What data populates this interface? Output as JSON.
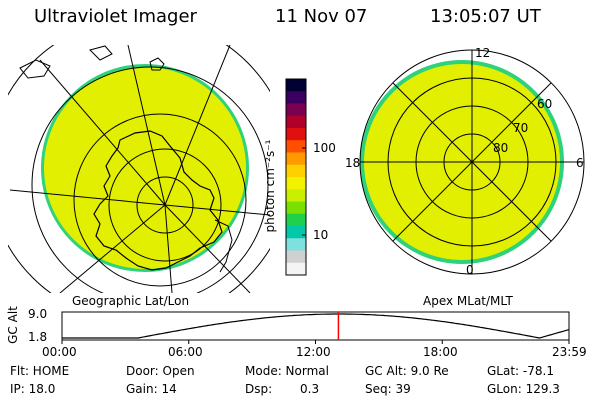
{
  "header": {
    "instrument": "Ultraviolet Imager",
    "date": "11 Nov 07",
    "time": "13:05:07 UT"
  },
  "geographic_panel": {
    "label": "Geographic Lat/Lon"
  },
  "apex_panel": {
    "label": "Apex MLat/MLT",
    "mlt_labels": {
      "top": "12",
      "left": "18",
      "right": "6",
      "bottom": "0"
    },
    "lat_labels": [
      "60",
      "70",
      "80"
    ]
  },
  "colorbar": {
    "unit_label": "photon cm⁻²s⁻¹",
    "ticks": [
      "100",
      "10"
    ],
    "colors": [
      "#000033",
      "#3a0060",
      "#7a0050",
      "#b0002a",
      "#e01010",
      "#ff5000",
      "#ff9a00",
      "#ffd000",
      "#f2f200",
      "#c8f000",
      "#7ae000",
      "#1ed04a",
      "#00c8a8",
      "#7fe0e0",
      "#d0d0d0",
      "#f4f4f4"
    ],
    "fill_color": "#e3ef00",
    "rim_color": "#2ed27a"
  },
  "altitude_plot": {
    "axis_label": "GC Alt",
    "y_ticks": [
      "9.0",
      "1.8"
    ],
    "x_ticks": [
      "00:00",
      "06:00",
      "12:00",
      "18:00",
      "23:59"
    ],
    "marker_time_hours": 13.085,
    "marker_color": "#ff0000"
  },
  "info": {
    "row1": {
      "flt": "Flt: HOME",
      "door": "Door: Open",
      "mode": "Mode: Normal",
      "gcalt": "GC Alt: 9.0 Re",
      "glat": "GLat: -78.1"
    },
    "row2": {
      "ip": "IP: 18.0",
      "gain": "Gain: 14",
      "dsp_label": "Dsp:",
      "dsp_value": "0.3",
      "seq": "Seq: 39",
      "glon": "GLon: 129.3"
    }
  }
}
